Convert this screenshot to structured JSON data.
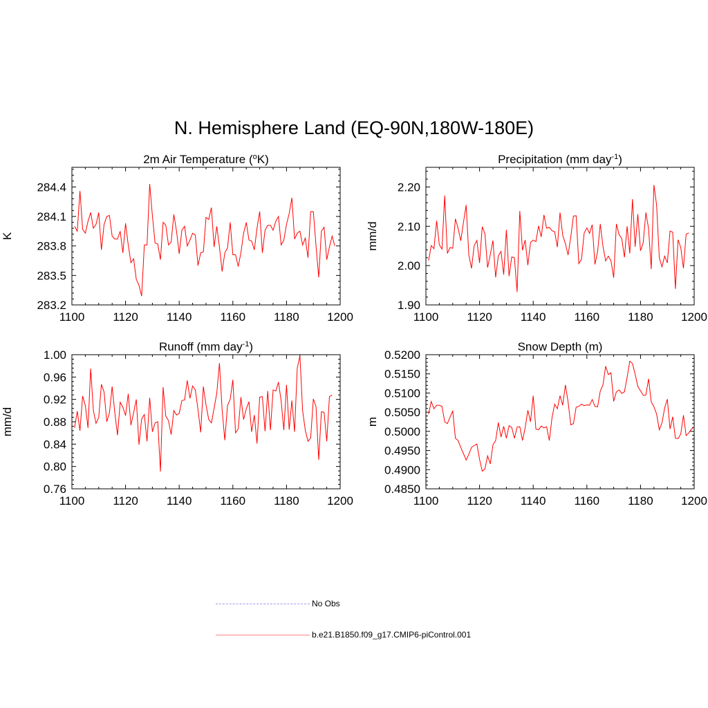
{
  "page": {
    "title": "N. Hemisphere Land (EQ-90N,180W-180E)"
  },
  "legend": {
    "items": [
      {
        "label": "No Obs",
        "color": "#9999ee",
        "style": "dashed"
      },
      {
        "label": "b.e21.B1850.f09_g17.CMIP6-piControl.001",
        "color": "#ff8080",
        "style": "solid"
      }
    ]
  },
  "chart_data": [
    {
      "type": "line",
      "title": {
        "main": "2m Air Temperature (",
        "sup": "o",
        "after": "K)"
      },
      "ylabel": "K",
      "xlim": [
        1100,
        1200
      ],
      "ylim": [
        283.2,
        284.6
      ],
      "x_ticks": [
        1100,
        1120,
        1140,
        1160,
        1180,
        1200
      ],
      "y_ticks": [
        "283.2",
        "283.5",
        "283.8",
        "284.1",
        "284.4"
      ],
      "series": [
        {
          "name": "b.e21.B1850.f09_g17.CMIP6-piControl.001",
          "color": "#ff0000",
          "x_start": 1101,
          "values": [
            284.0,
            283.95,
            284.36,
            283.97,
            283.93,
            284.05,
            284.14,
            283.98,
            284.02,
            284.14,
            283.76,
            284.02,
            284.1,
            284.11,
            283.9,
            283.87,
            283.87,
            283.95,
            283.73,
            284.03,
            283.81,
            283.63,
            283.67,
            283.46,
            283.4,
            283.29,
            283.81,
            283.81,
            284.43,
            284.11,
            283.83,
            283.82,
            283.66,
            284.04,
            284.01,
            283.81,
            283.84,
            284.12,
            283.95,
            283.72,
            283.96,
            284.0,
            283.8,
            283.86,
            283.93,
            283.91,
            283.6,
            283.73,
            283.74,
            284.09,
            284.07,
            284.19,
            283.79,
            284.0,
            283.79,
            283.54,
            283.73,
            283.78,
            284.04,
            283.71,
            283.71,
            283.59,
            283.73,
            283.93,
            284.04,
            283.86,
            283.85,
            283.76,
            283.98,
            284.15,
            283.73,
            283.96,
            284.01,
            284.01,
            283.96,
            284.05,
            284.1,
            283.81,
            283.86,
            284.02,
            284.13,
            284.29,
            283.87,
            283.93,
            283.95,
            283.81,
            283.88,
            283.68,
            284.15,
            284.15,
            283.8,
            283.48,
            283.95,
            283.99,
            283.66,
            283.79,
            283.9,
            283.8
          ]
        }
      ]
    },
    {
      "type": "line",
      "title": {
        "main": "Precipitation (mm day",
        "sup": "-1",
        "after": ")"
      },
      "ylabel": "mm/d",
      "xlim": [
        1100,
        1200
      ],
      "ylim": [
        1.9,
        2.25
      ],
      "x_ticks": [
        1100,
        1120,
        1140,
        1160,
        1180,
        1200
      ],
      "y_ticks": [
        "1.90",
        "2.00",
        "2.10",
        "2.20"
      ],
      "series": [
        {
          "name": "b.e21.B1850.f09_g17.CMIP6-piControl.001",
          "color": "#ff0000",
          "x_start": 1101,
          "values": [
            2.013,
            2.051,
            2.043,
            2.114,
            2.053,
            2.042,
            2.178,
            2.031,
            2.046,
            2.044,
            2.119,
            2.095,
            2.063,
            2.11,
            2.154,
            2.027,
            1.993,
            2.051,
            2.064,
            2.007,
            2.099,
            2.081,
            1.995,
            2.028,
            2.064,
            1.97,
            2.025,
            2.036,
            1.977,
            2.091,
            1.973,
            2.022,
            2.02,
            1.933,
            2.139,
            2.039,
            2.065,
            2.001,
            2.059,
            2.065,
            2.061,
            2.101,
            2.073,
            2.129,
            2.095,
            2.097,
            2.089,
            2.086,
            2.047,
            2.135,
            2.077,
            2.056,
            2.027,
            2.073,
            2.126,
            2.127,
            2.005,
            2.016,
            2.083,
            2.096,
            2.082,
            2.104,
            2.003,
            2.035,
            2.106,
            2.049,
            2.012,
            2.024,
            2.012,
            1.969,
            2.106,
            2.079,
            2.069,
            2.021,
            2.1,
            2.031,
            2.169,
            2.048,
            2.131,
            2.038,
            2.058,
            2.135,
            2.094,
            1.991,
            2.205,
            2.154,
            2.02,
            1.997,
            2.024,
            2.007,
            2.088,
            2.085,
            1.941,
            2.066,
            2.046,
            1.993,
            2.08,
            2.083
          ]
        }
      ]
    },
    {
      "type": "line",
      "title": {
        "main": "Runoff (mm day",
        "sup": "-1",
        "after": ")"
      },
      "ylabel": "mm/d",
      "xlim": [
        1100,
        1200
      ],
      "ylim": [
        0.76,
        1.0
      ],
      "x_ticks": [
        1100,
        1120,
        1140,
        1160,
        1180,
        1200
      ],
      "y_ticks": [
        "0.76",
        "0.80",
        "0.84",
        "0.88",
        "0.92",
        "0.96",
        "1.00"
      ],
      "series": [
        {
          "name": "b.e21.B1850.f09_g17.CMIP6-piControl.001",
          "color": "#ff0000",
          "x_start": 1101,
          "values": [
            0.869,
            0.899,
            0.864,
            0.926,
            0.909,
            0.869,
            0.975,
            0.9,
            0.877,
            0.888,
            0.947,
            0.933,
            0.88,
            0.896,
            0.943,
            0.896,
            0.856,
            0.915,
            0.906,
            0.891,
            0.93,
            0.874,
            0.896,
            0.92,
            0.839,
            0.885,
            0.893,
            0.845,
            0.923,
            0.862,
            0.878,
            0.88,
            0.791,
            0.942,
            0.89,
            0.882,
            0.857,
            0.9,
            0.892,
            0.895,
            0.918,
            0.919,
            0.954,
            0.922,
            0.944,
            0.937,
            0.902,
            0.861,
            0.943,
            0.91,
            0.884,
            0.878,
            0.904,
            0.931,
            0.985,
            0.901,
            0.847,
            0.909,
            0.92,
            0.955,
            0.86,
            0.867,
            0.924,
            0.884,
            0.903,
            0.916,
            0.862,
            0.892,
            0.841,
            0.924,
            0.925,
            0.863,
            0.935,
            0.865,
            0.937,
            0.935,
            0.951,
            0.917,
            0.865,
            0.946,
            0.866,
            0.918,
            0.862,
            0.976,
            0.998,
            0.9,
            0.865,
            0.845,
            0.851,
            0.921,
            0.907,
            0.812,
            0.898,
            0.897,
            0.845,
            0.925,
            0.928
          ]
        }
      ]
    },
    {
      "type": "line",
      "title": {
        "main": "Snow Depth (m)",
        "sup": "",
        "after": ""
      },
      "ylabel": "m",
      "xlim": [
        1100,
        1200
      ],
      "ylim": [
        0.485,
        0.52
      ],
      "x_ticks": [
        1100,
        1120,
        1140,
        1160,
        1180,
        1200
      ],
      "y_ticks": [
        "0.4850",
        "0.4900",
        "0.4950",
        "0.5000",
        "0.5050",
        "0.5100",
        "0.5150",
        "0.5200"
      ],
      "series": [
        {
          "name": "b.e21.B1850.f09_g17.CMIP6-piControl.001",
          "color": "#ff0000",
          "x_start": 1101,
          "values": [
            0.5045,
            0.5078,
            0.5059,
            0.5068,
            0.5068,
            0.5065,
            0.5025,
            0.502,
            0.5037,
            0.5053,
            0.4982,
            0.4976,
            0.4958,
            0.4942,
            0.4925,
            0.494,
            0.4958,
            0.4963,
            0.4967,
            0.4927,
            0.4896,
            0.4902,
            0.4936,
            0.4915,
            0.4965,
            0.4976,
            0.5023,
            0.4985,
            0.5013,
            0.4982,
            0.5015,
            0.501,
            0.4982,
            0.5011,
            0.5012,
            0.4976,
            0.5009,
            0.5055,
            0.5025,
            0.5093,
            0.5006,
            0.5004,
            0.5014,
            0.5009,
            0.5012,
            0.4976,
            0.5035,
            0.5071,
            0.5059,
            0.5093,
            0.5068,
            0.5121,
            0.5077,
            0.5017,
            0.502,
            0.5063,
            0.5065,
            0.5071,
            0.5067,
            0.5069,
            0.5068,
            0.5083,
            0.5065,
            0.5064,
            0.5105,
            0.5121,
            0.517,
            0.5148,
            0.5153,
            0.5078,
            0.5103,
            0.5108,
            0.5099,
            0.5103,
            0.5141,
            0.5183,
            0.5177,
            0.5149,
            0.5117,
            0.5106,
            0.5094,
            0.5095,
            0.5137,
            0.5077,
            0.5064,
            0.5045,
            0.5004,
            0.5022,
            0.5061,
            0.5084,
            0.5006,
            0.5038,
            0.4982,
            0.4981,
            0.4993,
            0.5042,
            0.4989,
            0.4996,
            0.5006,
            0.5011
          ]
        }
      ]
    }
  ]
}
